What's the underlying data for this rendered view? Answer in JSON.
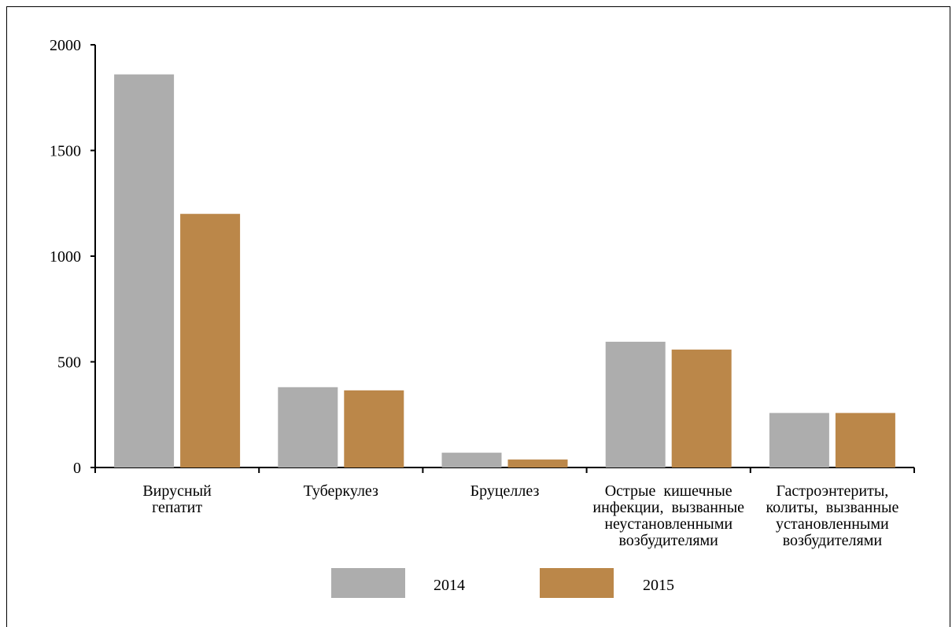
{
  "chart_data": {
    "type": "bar",
    "categories": [
      [
        "Вирусный",
        "гепатит"
      ],
      [
        "Туберкулез"
      ],
      [
        "Бруцеллез"
      ],
      [
        "Острые  кишечные",
        "инфекции,  вызванные",
        "неустановленными",
        "возбудителями"
      ],
      [
        "Гастроэнтериты,",
        "колиты,  вызванные",
        "установленными",
        "возбудителями"
      ]
    ],
    "series": [
      {
        "name": "2014",
        "color": "#adadad",
        "values": [
          1860,
          380,
          70,
          595,
          258
        ]
      },
      {
        "name": "2015",
        "color": "#bb8749",
        "values": [
          1200,
          365,
          38,
          558,
          258
        ]
      }
    ],
    "ylim": [
      0,
      2000
    ],
    "yticks": [
      "0",
      "500",
      "1000",
      "1500",
      "2000"
    ],
    "grid": false,
    "legend": "bottom"
  }
}
